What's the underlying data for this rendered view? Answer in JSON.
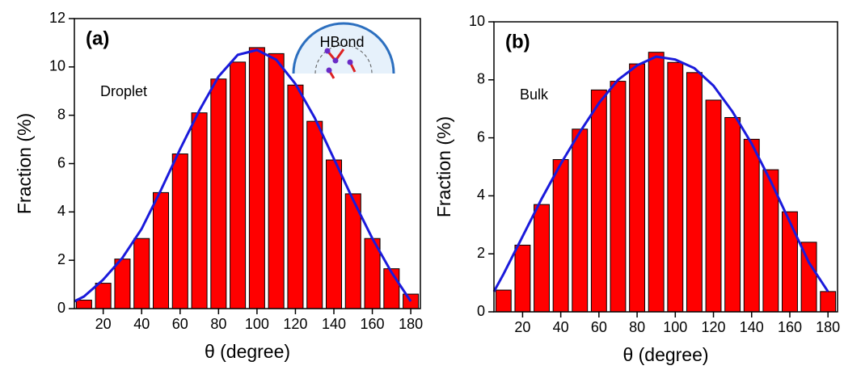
{
  "chart_data": [
    {
      "type": "bar",
      "label": "(a)",
      "annotation": "Droplet",
      "inset_label": "HBond",
      "xlabel": "θ (degree)",
      "ylabel": "Fraction (%)",
      "x": [
        10,
        20,
        30,
        40,
        50,
        60,
        70,
        80,
        90,
        100,
        110,
        120,
        130,
        140,
        150,
        160,
        170,
        180
      ],
      "values": [
        0.35,
        1.05,
        2.05,
        2.9,
        4.8,
        6.4,
        8.1,
        9.5,
        10.2,
        10.8,
        10.55,
        9.25,
        7.75,
        6.15,
        4.75,
        2.9,
        1.65,
        0.6
      ],
      "color": "#ff0000",
      "fit_x": [
        5,
        10,
        20,
        30,
        40,
        50,
        60,
        70,
        80,
        90,
        100,
        110,
        120,
        130,
        140,
        150,
        160,
        170,
        180
      ],
      "fit_values": [
        0.3,
        0.5,
        1.2,
        2.1,
        3.3,
        4.9,
        6.6,
        8.2,
        9.6,
        10.5,
        10.7,
        10.3,
        9.3,
        7.9,
        6.2,
        4.5,
        2.9,
        1.5,
        0.3
      ],
      "fit_color": "#1a1adb",
      "xlim": [
        5,
        185
      ],
      "xticks": [
        20,
        40,
        60,
        80,
        100,
        120,
        140,
        160,
        180
      ],
      "ylim": [
        0,
        12
      ],
      "yticks": [
        0,
        2,
        4,
        6,
        8,
        10,
        12
      ]
    },
    {
      "type": "bar",
      "label": "(b)",
      "annotation": "Bulk",
      "xlabel": "θ (degree)",
      "ylabel": "Fraction (%)",
      "x": [
        10,
        20,
        30,
        40,
        50,
        60,
        70,
        80,
        90,
        100,
        110,
        120,
        130,
        140,
        150,
        160,
        170,
        180
      ],
      "values": [
        0.75,
        2.3,
        3.7,
        5.25,
        6.3,
        7.65,
        7.95,
        8.55,
        8.95,
        8.6,
        8.25,
        7.3,
        6.7,
        5.95,
        4.9,
        3.45,
        2.4,
        0.7
      ],
      "color": "#ff0000",
      "fit_x": [
        5,
        10,
        20,
        30,
        40,
        50,
        60,
        70,
        80,
        90,
        100,
        110,
        120,
        130,
        140,
        150,
        160,
        170,
        180
      ],
      "fit_values": [
        0.7,
        1.3,
        2.6,
        3.9,
        5.1,
        6.2,
        7.2,
        8.0,
        8.5,
        8.8,
        8.7,
        8.4,
        7.8,
        6.9,
        5.8,
        4.5,
        3.1,
        1.7,
        0.7
      ],
      "fit_color": "#1a1adb",
      "xlim": [
        5,
        185
      ],
      "xticks": [
        20,
        40,
        60,
        80,
        100,
        120,
        140,
        160,
        180
      ],
      "ylim": [
        0,
        10
      ],
      "yticks": [
        0,
        2,
        4,
        6,
        8,
        10
      ]
    }
  ]
}
